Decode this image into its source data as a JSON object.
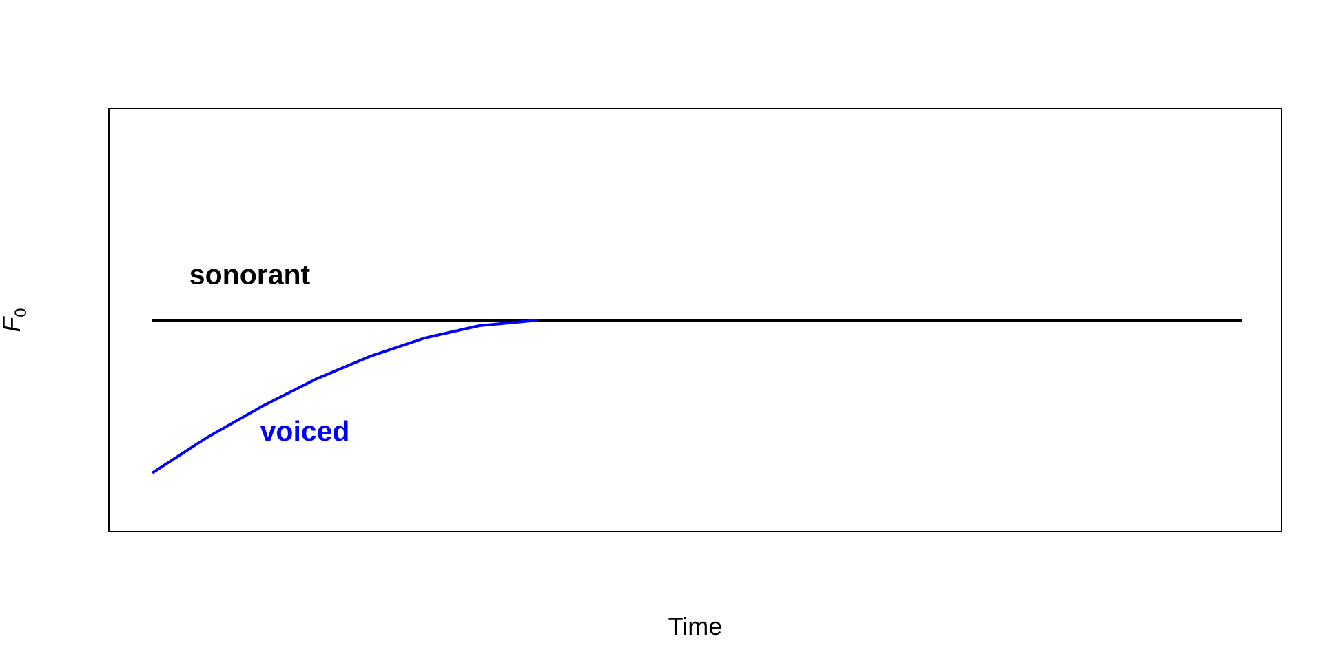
{
  "chart_data": {
    "type": "line",
    "title": "",
    "xlabel": "Time",
    "ylabel": {
      "main": "F",
      "subscript": "0"
    },
    "xlim": [
      0,
      1
    ],
    "ylim": [
      0,
      1
    ],
    "grid": false,
    "axis_ticks": false,
    "series": [
      {
        "name": "sonorant",
        "color": "#000000",
        "x": [
          0.0,
          1.0
        ],
        "y": [
          0.5,
          0.5
        ]
      },
      {
        "name": "voiced",
        "color": "#0000ff",
        "x": [
          0.0,
          0.05,
          0.1,
          0.15,
          0.2,
          0.25,
          0.3,
          0.354
        ],
        "y": [
          0.14,
          0.223,
          0.296,
          0.361,
          0.415,
          0.458,
          0.487,
          0.5
        ]
      }
    ],
    "annotations": [
      {
        "text": "sonorant",
        "color": "#000000",
        "x": 0.034,
        "y": 0.585
      },
      {
        "text": "voiced",
        "color": "#0000ff",
        "x": 0.099,
        "y": 0.216
      }
    ]
  }
}
